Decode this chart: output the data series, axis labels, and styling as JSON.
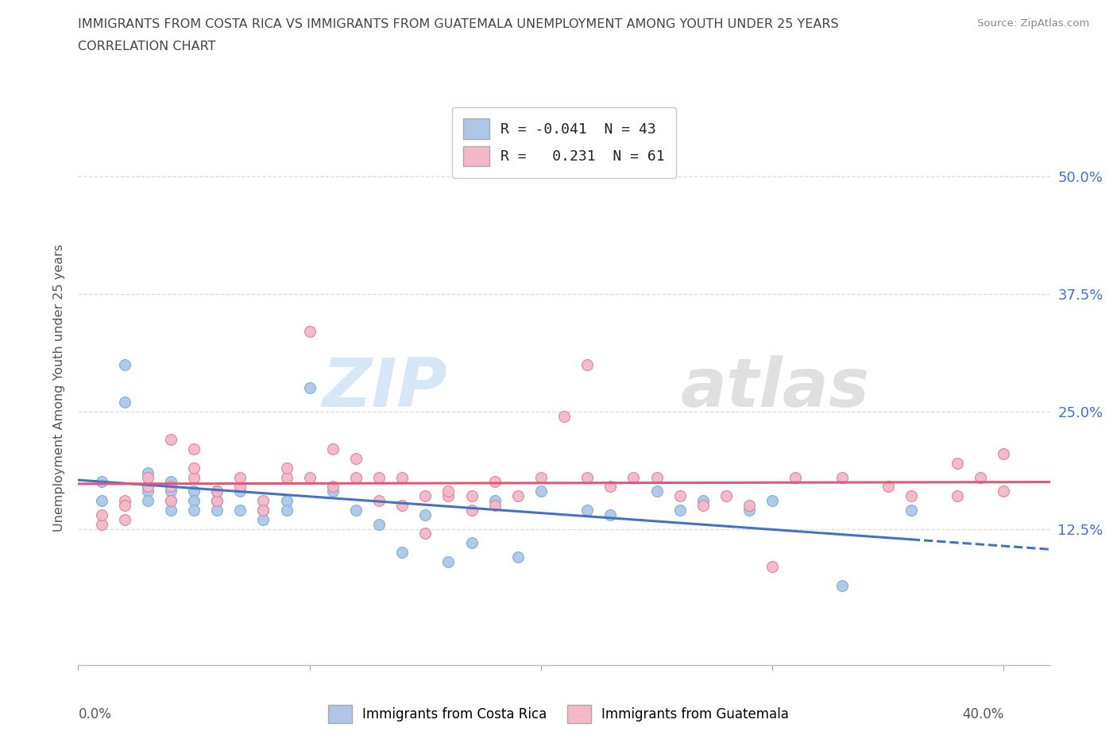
{
  "title_line1": "IMMIGRANTS FROM COSTA RICA VS IMMIGRANTS FROM GUATEMALA UNEMPLOYMENT AMONG YOUTH UNDER 25 YEARS",
  "title_line2": "CORRELATION CHART",
  "source": "Source: ZipAtlas.com",
  "ylabel": "Unemployment Among Youth under 25 years",
  "xlim": [
    0.0,
    0.42
  ],
  "ylim": [
    -0.02,
    0.57
  ],
  "yticks": [
    0.125,
    0.25,
    0.375,
    0.5
  ],
  "ytick_labels": [
    "12.5%",
    "25.0%",
    "37.5%",
    "50.0%"
  ],
  "xtick_positions": [
    0.0,
    0.1,
    0.2,
    0.3,
    0.4
  ],
  "xtick_label_ends": [
    "0.0%",
    "40.0%"
  ],
  "costa_rica_color": "#aec6e8",
  "costa_rica_edge": "#7aafd4",
  "guatemala_color": "#f4b8c8",
  "guatemala_edge": "#e08098",
  "costa_rica_line_color": "#4472c4",
  "guatemala_line_color": "#e05878",
  "R_costa_rica": -0.041,
  "N_costa_rica": 43,
  "R_guatemala": 0.231,
  "N_guatemala": 61,
  "watermark": "ZIPatlas",
  "legend_label_cr": "Immigrants from Costa Rica",
  "legend_label_gt": "Immigrants from Guatemala",
  "costa_rica_x": [
    0.01,
    0.01,
    0.02,
    0.02,
    0.03,
    0.03,
    0.03,
    0.04,
    0.04,
    0.04,
    0.04,
    0.05,
    0.05,
    0.05,
    0.06,
    0.06,
    0.06,
    0.07,
    0.07,
    0.08,
    0.08,
    0.09,
    0.09,
    0.1,
    0.11,
    0.12,
    0.13,
    0.14,
    0.15,
    0.16,
    0.17,
    0.18,
    0.19,
    0.2,
    0.22,
    0.23,
    0.25,
    0.26,
    0.27,
    0.29,
    0.3,
    0.33,
    0.36
  ],
  "costa_rica_y": [
    0.155,
    0.175,
    0.3,
    0.26,
    0.185,
    0.165,
    0.155,
    0.175,
    0.165,
    0.155,
    0.145,
    0.165,
    0.155,
    0.145,
    0.165,
    0.155,
    0.145,
    0.165,
    0.145,
    0.145,
    0.135,
    0.155,
    0.145,
    0.275,
    0.165,
    0.145,
    0.13,
    0.1,
    0.14,
    0.09,
    0.11,
    0.155,
    0.095,
    0.165,
    0.145,
    0.14,
    0.165,
    0.145,
    0.155,
    0.145,
    0.155,
    0.065,
    0.145
  ],
  "guatemala_x": [
    0.01,
    0.01,
    0.02,
    0.02,
    0.02,
    0.03,
    0.03,
    0.04,
    0.04,
    0.04,
    0.05,
    0.05,
    0.05,
    0.06,
    0.06,
    0.07,
    0.07,
    0.08,
    0.08,
    0.09,
    0.09,
    0.1,
    0.1,
    0.11,
    0.11,
    0.12,
    0.12,
    0.13,
    0.13,
    0.14,
    0.14,
    0.15,
    0.15,
    0.16,
    0.16,
    0.17,
    0.17,
    0.18,
    0.18,
    0.19,
    0.2,
    0.21,
    0.22,
    0.23,
    0.24,
    0.25,
    0.26,
    0.27,
    0.28,
    0.29,
    0.3,
    0.31,
    0.33,
    0.35,
    0.36,
    0.38,
    0.38,
    0.39,
    0.4,
    0.4,
    0.22
  ],
  "guatemala_y": [
    0.13,
    0.14,
    0.135,
    0.155,
    0.15,
    0.17,
    0.18,
    0.22,
    0.17,
    0.155,
    0.18,
    0.19,
    0.21,
    0.155,
    0.165,
    0.17,
    0.18,
    0.155,
    0.145,
    0.18,
    0.19,
    0.18,
    0.335,
    0.17,
    0.21,
    0.2,
    0.18,
    0.18,
    0.155,
    0.15,
    0.18,
    0.12,
    0.16,
    0.16,
    0.165,
    0.145,
    0.16,
    0.15,
    0.175,
    0.16,
    0.18,
    0.245,
    0.18,
    0.17,
    0.18,
    0.18,
    0.16,
    0.15,
    0.16,
    0.15,
    0.085,
    0.18,
    0.18,
    0.17,
    0.16,
    0.16,
    0.195,
    0.18,
    0.165,
    0.205,
    0.3
  ],
  "cr_trend_x": [
    0.0,
    0.42
  ],
  "cr_trend_solid_end": 0.36,
  "gt_trend_x": [
    0.0,
    0.42
  ]
}
